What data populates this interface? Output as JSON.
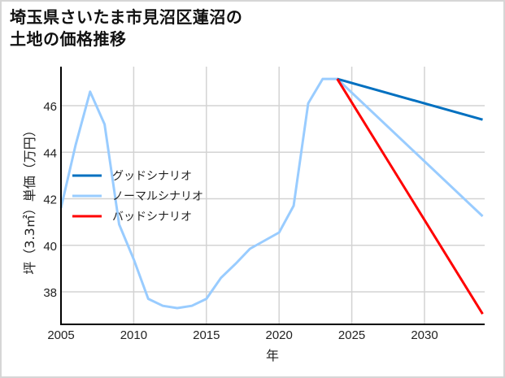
{
  "title": {
    "line1": "埼玉県さいたま市見沼区蓮沼の",
    "line2": "土地の価格推移"
  },
  "colors": {
    "good": "#0070c0",
    "normal": "#99ccff",
    "bad": "#ff0000",
    "grid": "#d3d3d3",
    "axis": "#000000",
    "border": "#d6d6d6"
  },
  "chart_data": {
    "type": "line",
    "title": "埼玉県さいたま市見沼区蓮沼の土地の価格推移",
    "xlabel": "年",
    "ylabel": "坪（3.3㎡）単価（万円）",
    "xlim": [
      2005,
      2034
    ],
    "ylim": [
      36.7,
      47.6
    ],
    "x_ticks": [
      2005,
      2010,
      2015,
      2020,
      2025,
      2030
    ],
    "y_ticks": [
      38,
      40,
      42,
      44,
      46
    ],
    "grid": true,
    "legend_position": "left-middle",
    "legend": [
      "グッドシナリオ",
      "ノーマルシナリオ",
      "バッドシナリオ"
    ],
    "series": [
      {
        "name": "グッドシナリオ",
        "color": "#0070c0",
        "x": [
          2024,
          2034
        ],
        "values": [
          47.15,
          45.4
        ]
      },
      {
        "name": "ノーマルシナリオ",
        "color": "#99ccff",
        "x": [
          2005,
          2006,
          2007,
          2008,
          2009,
          2010,
          2011,
          2012,
          2013,
          2014,
          2015,
          2016,
          2017,
          2018,
          2019,
          2020,
          2021,
          2022,
          2023,
          2024,
          2034
        ],
        "values": [
          41.6,
          44.3,
          46.6,
          45.2,
          40.9,
          39.4,
          37.7,
          37.4,
          37.3,
          37.4,
          37.7,
          38.6,
          39.2,
          39.85,
          40.2,
          40.55,
          41.7,
          46.1,
          47.15,
          47.15,
          41.25
        ]
      },
      {
        "name": "バッドシナリオ",
        "color": "#ff0000",
        "x": [
          2024,
          2034
        ],
        "values": [
          47.15,
          37.05
        ]
      }
    ]
  }
}
